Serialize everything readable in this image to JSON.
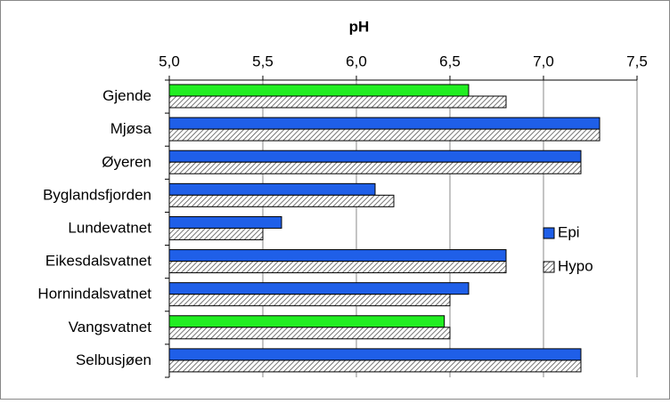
{
  "chart_data": {
    "type": "hbar",
    "title": "pH",
    "categories": [
      "Gjende",
      "Mjøsa",
      "Øyeren",
      "Byglandsfjorden",
      "Lundevatnet",
      "Eikesdalsvatnet",
      "Hornindalsvatnet",
      "Vangsvatnet",
      "Selbusjøen"
    ],
    "series": [
      {
        "name": "Epi",
        "color": "#1f5fe8",
        "colors": [
          "#22ee22",
          "#1f5fe8",
          "#1f5fe8",
          "#1f5fe8",
          "#1f5fe8",
          "#1f5fe8",
          "#1f5fe8",
          "#22ee22",
          "#1f5fe8"
        ],
        "values": [
          6.6,
          7.3,
          7.2,
          6.1,
          5.6,
          6.8,
          6.6,
          6.47,
          7.2
        ]
      },
      {
        "name": "Hypo",
        "color": "#ffffff",
        "fill": "hatched",
        "values": [
          6.8,
          7.3,
          7.2,
          6.2,
          5.5,
          6.8,
          6.5,
          6.5,
          7.2
        ]
      }
    ],
    "xlim": [
      5.0,
      7.5
    ],
    "xticks": [
      {
        "value": 5.0,
        "label": "5,0"
      },
      {
        "value": 5.5,
        "label": "5,5"
      },
      {
        "value": 6.0,
        "label": "6,0"
      },
      {
        "value": 6.5,
        "label": "6,5"
      },
      {
        "value": 7.0,
        "label": "7,0"
      },
      {
        "value": 7.5,
        "label": "7,5"
      }
    ],
    "grid": true,
    "legend": "right"
  }
}
